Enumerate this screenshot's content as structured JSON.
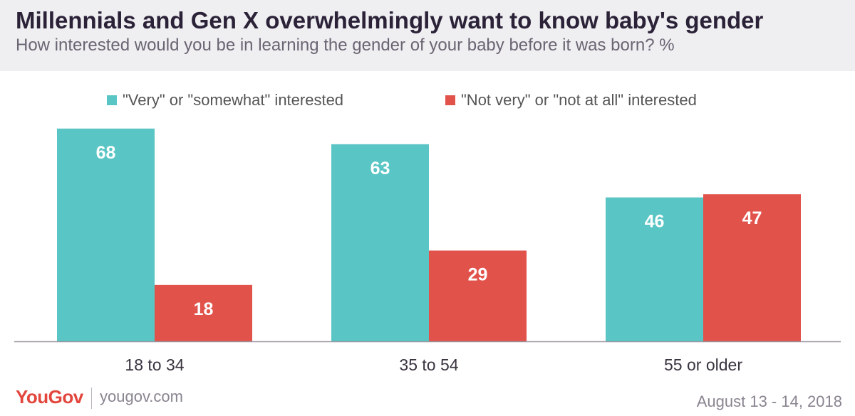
{
  "header": {
    "title": "Millennials and Gen X overwhelmingly want to know baby's gender",
    "subtitle": "How interested would you be in learning the gender of your baby before it was born? %"
  },
  "footer": {
    "brand": "YouGov",
    "url": "yougov.com",
    "date": "August 13 - 14, 2018"
  },
  "chart_data": {
    "type": "bar",
    "title": "Millennials and Gen X overwhelmingly want to know baby's gender",
    "subtitle": "How interested would you be in learning the gender of your baby before it was born? %",
    "categories": [
      "18 to 34",
      "35 to 54",
      "55 or older"
    ],
    "series": [
      {
        "name": "\"Very\" or \"somewhat\" interested",
        "values": [
          68,
          63,
          46
        ],
        "color": "#59c5c4"
      },
      {
        "name": "\"Not very\" or \"not at all\" interested",
        "values": [
          18,
          29,
          47
        ],
        "color": "#e1524a"
      }
    ],
    "ylim": [
      0,
      70
    ],
    "grid": false,
    "legend": "top-center",
    "data_labels": true
  }
}
